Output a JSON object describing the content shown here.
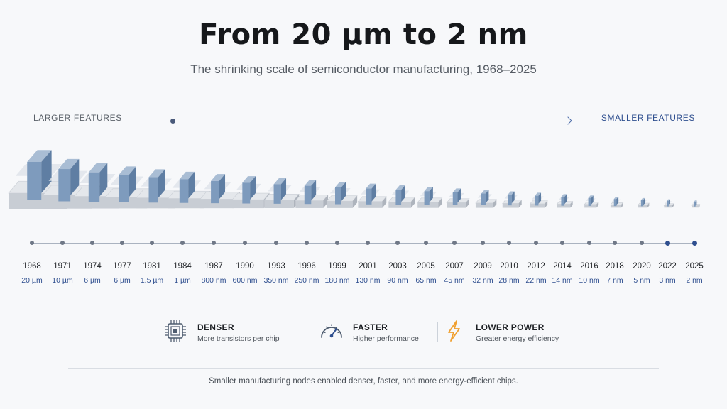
{
  "header": {
    "title": "From 20 µm to 2 nm",
    "subtitle": "The shrinking scale of semiconductor manufacturing, 1968–2025"
  },
  "direction": {
    "left_label": "LARGER FEATURES",
    "right_label": "SMALLER FEATURES"
  },
  "timeline": [
    {
      "year": "1968",
      "size": "20 µm"
    },
    {
      "year": "1971",
      "size": "10 µm"
    },
    {
      "year": "1974",
      "size": "6 µm"
    },
    {
      "year": "1977",
      "size": "6 µm"
    },
    {
      "year": "1981",
      "size": "1.5 µm"
    },
    {
      "year": "1984",
      "size": "1 µm"
    },
    {
      "year": "1987",
      "size": "800 nm"
    },
    {
      "year": "1990",
      "size": "600 nm"
    },
    {
      "year": "1993",
      "size": "350 nm"
    },
    {
      "year": "1996",
      "size": "250 nm"
    },
    {
      "year": "1999",
      "size": "180 nm"
    },
    {
      "year": "2001",
      "size": "130 nm"
    },
    {
      "year": "2003",
      "size": "90 nm"
    },
    {
      "year": "2005",
      "size": "65 nm"
    },
    {
      "year": "2007",
      "size": "45 nm"
    },
    {
      "year": "2009",
      "size": "32 nm"
    },
    {
      "year": "2010",
      "size": "28 nm"
    },
    {
      "year": "2012",
      "size": "22 nm"
    },
    {
      "year": "2014",
      "size": "14 nm"
    },
    {
      "year": "2016",
      "size": "10 nm"
    },
    {
      "year": "2018",
      "size": "7 nm"
    },
    {
      "year": "2020",
      "size": "5 nm"
    },
    {
      "year": "2022",
      "size": "3 nm"
    },
    {
      "year": "2025",
      "size": "2 nm"
    }
  ],
  "benefits": [
    {
      "icon": "chip-icon",
      "title": "DENSER",
      "desc": "More transistors per chip"
    },
    {
      "icon": "speedometer-icon",
      "title": "FASTER",
      "desc": "Higher performance"
    },
    {
      "icon": "lightning-icon",
      "title": "LOWER POWER",
      "desc": "Greater energy efficiency"
    }
  ],
  "colors": {
    "accent": "#2f4f8f",
    "gate": "#7e9bbd",
    "lightning": "#f0a030"
  },
  "footer": {
    "text": "Smaller manufacturing nodes enabled denser, faster, and more energy-efficient chips."
  }
}
